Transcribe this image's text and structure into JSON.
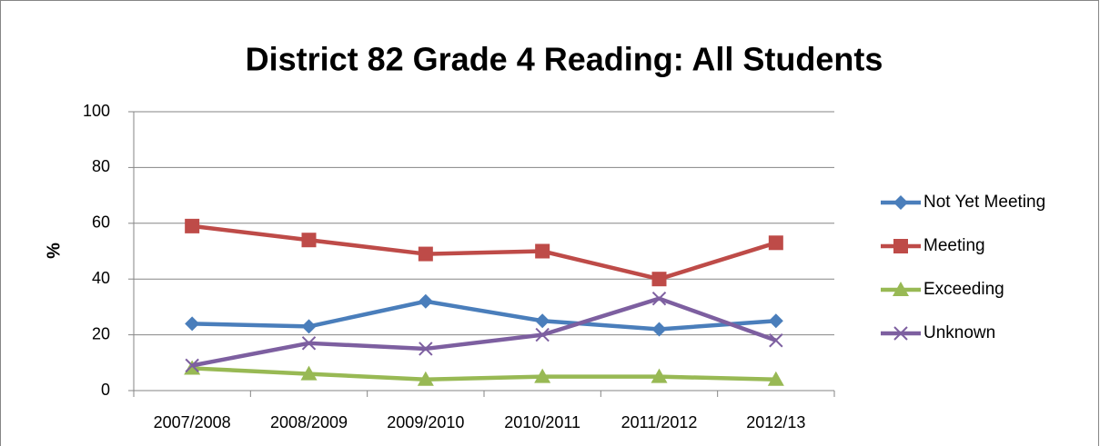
{
  "chart_data": {
    "type": "line",
    "title": "District 82 Grade 4 Reading: All Students",
    "y_label": "%",
    "categories": [
      "2007/2008",
      "2008/2009",
      "2009/2010",
      "2010/2011",
      "2011/2012",
      "2012/13"
    ],
    "series": [
      {
        "name": "Not Yet Meeting",
        "color": "#4a7ebb",
        "marker": "diamond",
        "values": [
          24,
          23,
          32,
          25,
          22,
          25
        ]
      },
      {
        "name": "Meeting",
        "color": "#be4b48",
        "marker": "square",
        "values": [
          59,
          54,
          49,
          50,
          40,
          53
        ]
      },
      {
        "name": "Exceeding",
        "color": "#98b954",
        "marker": "triangle",
        "values": [
          8,
          6,
          4,
          5,
          5,
          4
        ]
      },
      {
        "name": "Unknown",
        "color": "#7d5fa0",
        "marker": "x",
        "values": [
          9,
          17,
          15,
          20,
          33,
          18
        ]
      }
    ],
    "ylim": [
      0,
      100
    ],
    "yticks": [
      0,
      20,
      40,
      60,
      80,
      100
    ],
    "grid": true,
    "legend": "right"
  }
}
